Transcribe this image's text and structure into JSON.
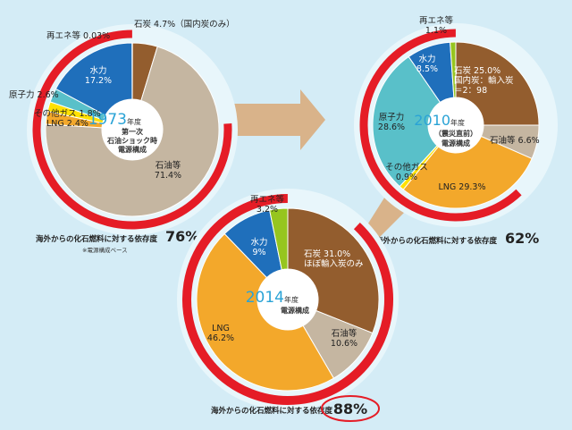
{
  "colors": {
    "background": "#d4ecf6",
    "dependency_ring": "#e51c26",
    "arrow": "#d9b38a",
    "highlight_circle": "#e51c26",
    "coal": "#935d2e",
    "oil": "#c5b6a1",
    "lng": "#f3a82b",
    "other_gas": "#ffe100",
    "nuclear": "#59c0c9",
    "hydro": "#1f6fbb",
    "renewable": "#96c51f"
  },
  "chart_data": [
    {
      "type": "pie",
      "year": "1973",
      "year_suffix": "年度",
      "subtitle_lines": [
        "第一次",
        "石油ショック時",
        "電源構成"
      ],
      "slices": [
        {
          "key": "coal",
          "label": "石炭 4.7%（国内炭のみ）",
          "value": 4.7
        },
        {
          "key": "oil",
          "label": "石油等\n71.4%",
          "value": 71.4
        },
        {
          "key": "lng",
          "label": "LNG 2.4%",
          "value": 2.4
        },
        {
          "key": "other_gas",
          "label": "その他ガス 1.8%",
          "value": 1.8
        },
        {
          "key": "nuclear",
          "label": "原子力 2.6%",
          "value": 2.6
        },
        {
          "key": "hydro",
          "label": "水力\n17.2%",
          "value": 17.2
        },
        {
          "key": "renewable",
          "label": "再エネ等 0.03%",
          "value": 0.03
        }
      ],
      "dependency_label": "海外からの化石燃料に対する依存度",
      "dependency_value": "76%",
      "dependency_fraction": 0.76,
      "footnote": "※電源構成ベース"
    },
    {
      "type": "pie",
      "year": "2010",
      "year_suffix": "年度",
      "subtitle_lines": [
        "（震災直前）",
        "電源構成"
      ],
      "slices": [
        {
          "key": "coal",
          "label": "石炭 25.0%\n国内炭：輸入炭\n＝2：98",
          "value": 25.0
        },
        {
          "key": "oil",
          "label": "石油等 6.6%",
          "value": 6.6
        },
        {
          "key": "lng",
          "label": "LNG 29.3%",
          "value": 29.3
        },
        {
          "key": "other_gas",
          "label": "その他ガス\n0.9%",
          "value": 0.9
        },
        {
          "key": "nuclear",
          "label": "原子力\n28.6%",
          "value": 28.6
        },
        {
          "key": "hydro",
          "label": "水力\n8.5%",
          "value": 8.5
        },
        {
          "key": "renewable",
          "label": "再エネ等\n1.1%",
          "value": 1.1
        }
      ],
      "dependency_label": "海外からの化石燃料に対する依存度",
      "dependency_value": "62%",
      "dependency_fraction": 0.62
    },
    {
      "type": "pie",
      "year": "2014",
      "year_suffix": "年度",
      "subtitle_lines": [
        "電源構成"
      ],
      "slices": [
        {
          "key": "coal",
          "label": "石炭 31.0%\nほぼ輸入炭のみ",
          "value": 31.0
        },
        {
          "key": "oil",
          "label": "石油等\n10.6%",
          "value": 10.6
        },
        {
          "key": "lng",
          "label": "LNG\n46.2%",
          "value": 46.2
        },
        {
          "key": "hydro",
          "label": "水力\n9%",
          "value": 9.0
        },
        {
          "key": "renewable",
          "label": "再エネ等\n3.2%",
          "value": 3.2
        }
      ],
      "dependency_label": "海外からの化石燃料に対する依存度",
      "dependency_value": "88%",
      "dependency_fraction": 0.88
    }
  ]
}
